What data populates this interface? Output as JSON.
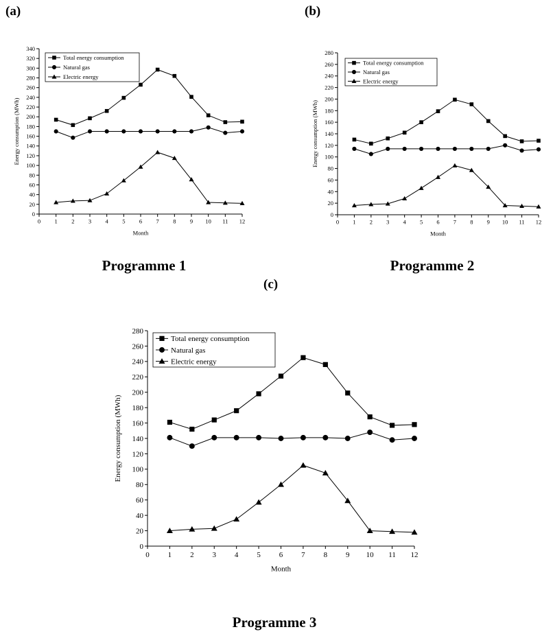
{
  "panels": [
    {
      "label": "(a)",
      "caption": "Programme 1"
    },
    {
      "label": "(b)",
      "caption": "Programme 2"
    },
    {
      "label": "(c)",
      "caption": "Programme 3"
    }
  ],
  "chart_data": [
    {
      "type": "line",
      "title": "",
      "xlabel": "Month",
      "ylabel": "Energy consumption (MWh)",
      "xlim": [
        0,
        12
      ],
      "ylim": [
        0,
        340
      ],
      "ytick_step": 20,
      "grid": false,
      "legend_position": "top-left",
      "x": [
        1,
        2,
        3,
        4,
        5,
        6,
        7,
        8,
        9,
        10,
        11,
        12
      ],
      "series": [
        {
          "name": "Total energy consumption",
          "marker": "square",
          "values": [
            194,
            183,
            197,
            212,
            239,
            266,
            297,
            284,
            241,
            203,
            189,
            190
          ]
        },
        {
          "name": "Natural gas",
          "marker": "circle",
          "values": [
            170,
            157,
            170,
            170,
            170,
            170,
            170,
            170,
            170,
            178,
            167,
            170
          ]
        },
        {
          "name": "Electric energy",
          "marker": "triangle",
          "values": [
            24,
            27,
            28,
            42,
            69,
            97,
            127,
            115,
            71,
            24,
            23,
            22
          ]
        }
      ]
    },
    {
      "type": "line",
      "title": "",
      "xlabel": "Month",
      "ylabel": "Energy consumption (MWh)",
      "xlim": [
        0,
        12
      ],
      "ylim": [
        0,
        280
      ],
      "ytick_step": 20,
      "grid": false,
      "legend_position": "top-left",
      "x": [
        1,
        2,
        3,
        4,
        5,
        6,
        7,
        8,
        9,
        10,
        11,
        12
      ],
      "series": [
        {
          "name": "Total energy consumption",
          "marker": "square",
          "values": [
            130,
            123,
            132,
            142,
            160,
            179,
            199,
            191,
            162,
            136,
            127,
            128
          ]
        },
        {
          "name": "Natural gas",
          "marker": "circle",
          "values": [
            114,
            105,
            114,
            114,
            114,
            114,
            114,
            114,
            114,
            120,
            111,
            113
          ]
        },
        {
          "name": "Electric energy",
          "marker": "triangle",
          "values": [
            16,
            18,
            19,
            28,
            46,
            65,
            85,
            77,
            48,
            16,
            15,
            14
          ]
        }
      ]
    },
    {
      "type": "line",
      "title": "",
      "xlabel": "Month",
      "ylabel": "Energy consumption (MWh)",
      "xlim": [
        0,
        12
      ],
      "ylim": [
        0,
        280
      ],
      "ytick_step": 20,
      "grid": false,
      "legend_position": "top-left",
      "x": [
        1,
        2,
        3,
        4,
        5,
        6,
        7,
        8,
        9,
        10,
        11,
        12
      ],
      "series": [
        {
          "name": "Total energy consumption",
          "marker": "square",
          "values": [
            161,
            152,
            164,
            176,
            198,
            221,
            245,
            236,
            199,
            168,
            157,
            158
          ]
        },
        {
          "name": "Natural gas",
          "marker": "circle",
          "values": [
            141,
            130,
            141,
            141,
            141,
            140,
            141,
            141,
            140,
            148,
            138,
            140
          ]
        },
        {
          "name": "Electric energy",
          "marker": "triangle",
          "values": [
            20,
            22,
            23,
            35,
            57,
            80,
            105,
            95,
            59,
            20,
            19,
            18
          ]
        }
      ]
    }
  ]
}
